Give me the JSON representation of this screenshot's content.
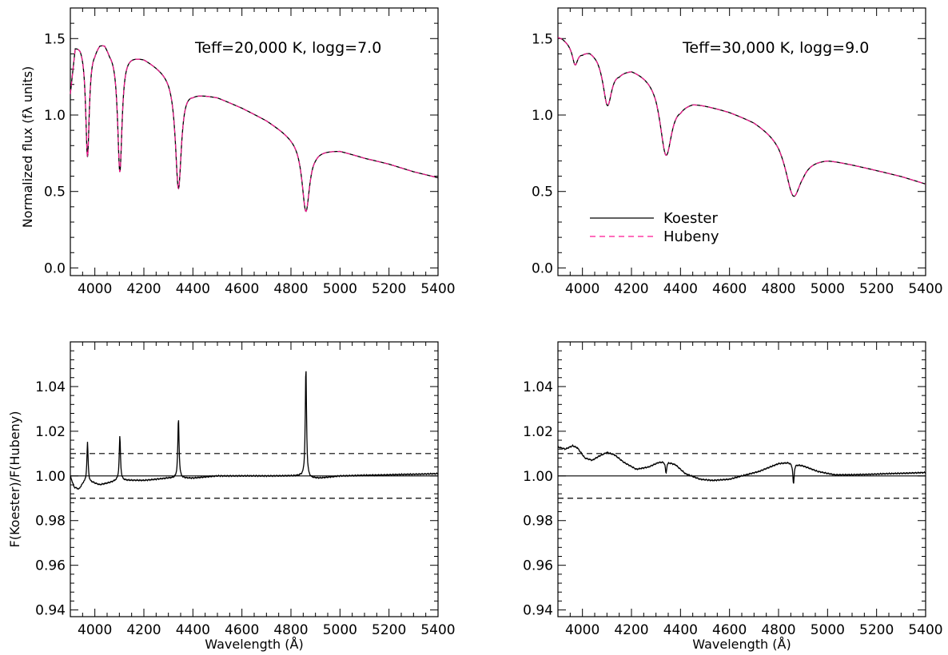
{
  "chart_data": [
    {
      "type": "line",
      "panel": "top-left",
      "annotation": "Teff=20,000 K, logg=7.0",
      "xlabel": "",
      "ylabel": "Normalized flux (fλ units)",
      "xlim": [
        3900,
        5400
      ],
      "ylim": [
        -0.05,
        1.7
      ],
      "xticks": [
        4000,
        4200,
        4400,
        4600,
        4800,
        5000,
        5200,
        5400
      ],
      "xtick_labels": [
        "4000",
        "4200",
        "4400",
        "4600",
        "4800",
        "5000",
        "5200",
        "5400"
      ],
      "yticks": [
        0.0,
        0.5,
        1.0,
        1.5
      ],
      "ytick_labels": [
        "0.0",
        "0.5",
        "1.0",
        "1.5"
      ],
      "continuum": [
        [
          3900,
          1.15
        ],
        [
          3920,
          1.46
        ],
        [
          3940,
          1.48
        ],
        [
          4000,
          1.45
        ],
        [
          4020,
          1.49
        ],
        [
          4040,
          1.49
        ],
        [
          4060,
          1.44
        ],
        [
          4200,
          1.38
        ],
        [
          4300,
          1.28
        ],
        [
          4400,
          1.155
        ],
        [
          4500,
          1.12
        ],
        [
          4600,
          1.05
        ],
        [
          4700,
          0.97
        ],
        [
          4800,
          0.87
        ],
        [
          4900,
          0.78
        ],
        [
          5000,
          0.77
        ],
        [
          5100,
          0.72
        ],
        [
          5200,
          0.68
        ],
        [
          5300,
          0.63
        ],
        [
          5400,
          0.59
        ]
      ],
      "lines": [
        {
          "center": 3970,
          "depth_to": 0.73,
          "width": 9
        },
        {
          "center": 4102,
          "depth_to": 0.63,
          "width": 11
        },
        {
          "center": 4341,
          "depth_to": 0.52,
          "width": 15
        },
        {
          "center": 4861,
          "depth_to": 0.37,
          "width": 19
        }
      ],
      "series": [
        {
          "name": "Koester",
          "style": "solid",
          "color": "#000000"
        },
        {
          "name": "Hubeny",
          "style": "dashed",
          "color": "#ff1493"
        }
      ],
      "grid": false
    },
    {
      "type": "line",
      "panel": "top-right",
      "annotation": "Teff=30,000 K, logg=9.0",
      "xlabel": "",
      "ylabel": "",
      "xlim": [
        3900,
        5400
      ],
      "ylim": [
        -0.05,
        1.7
      ],
      "xticks": [
        4000,
        4200,
        4400,
        4600,
        4800,
        5000,
        5200,
        5400
      ],
      "xtick_labels": [
        "4000",
        "4200",
        "4400",
        "4600",
        "4800",
        "5000",
        "5200",
        "5400"
      ],
      "yticks": [
        0.0,
        0.5,
        1.0,
        1.5
      ],
      "ytick_labels": [
        "0.0",
        "0.5",
        "1.0",
        "1.5"
      ],
      "continuum": [
        [
          3900,
          1.52
        ],
        [
          3920,
          1.51
        ],
        [
          3950,
          1.48
        ],
        [
          4000,
          1.43
        ],
        [
          4030,
          1.44
        ],
        [
          4060,
          1.42
        ],
        [
          4150,
          1.31
        ],
        [
          4200,
          1.32
        ],
        [
          4300,
          1.26
        ],
        [
          4400,
          1.1
        ],
        [
          4450,
          1.1
        ],
        [
          4600,
          1.03
        ],
        [
          4700,
          0.97
        ],
        [
          4800,
          0.88
        ],
        [
          4900,
          0.73
        ],
        [
          5000,
          0.72
        ],
        [
          5100,
          0.68
        ],
        [
          5200,
          0.64
        ],
        [
          5300,
          0.6
        ],
        [
          5400,
          0.55
        ]
      ],
      "lines": [
        {
          "center": 3970,
          "depth_to": 1.34,
          "width": 14
        },
        {
          "center": 4102,
          "depth_to": 1.07,
          "width": 22
        },
        {
          "center": 4341,
          "depth_to": 0.74,
          "width": 30
        },
        {
          "center": 4861,
          "depth_to": 0.47,
          "width": 38
        }
      ],
      "series": [
        {
          "name": "Koester",
          "style": "solid",
          "color": "#000000"
        },
        {
          "name": "Hubeny",
          "style": "dashed",
          "color": "#ff1493"
        }
      ],
      "legend": {
        "placement": "lower-left",
        "entries": [
          "Koester",
          "Hubeny"
        ]
      },
      "grid": false
    },
    {
      "type": "line",
      "panel": "bottom-left",
      "xlabel": "Wavelength (Å)",
      "ylabel": "F(Koester)/F(Hubeny)",
      "xlim": [
        3900,
        5400
      ],
      "ylim": [
        0.937,
        1.06
      ],
      "xticks": [
        4000,
        4200,
        4400,
        4600,
        4800,
        5000,
        5200,
        5400
      ],
      "xtick_labels": [
        "4000",
        "4200",
        "4400",
        "4600",
        "4800",
        "5000",
        "5200",
        "5400"
      ],
      "yticks": [
        0.94,
        0.96,
        0.98,
        1.0,
        1.02,
        1.04
      ],
      "ytick_labels": [
        "0.94",
        "0.96",
        "0.98",
        "1.00",
        "1.02",
        "1.04"
      ],
      "reference_lines": [
        {
          "y": 1.0,
          "style": "solid"
        },
        {
          "y": 1.01,
          "style": "dashed"
        },
        {
          "y": 0.99,
          "style": "dashed"
        }
      ],
      "baseline": [
        [
          3900,
          1.0
        ],
        [
          3915,
          0.995
        ],
        [
          3935,
          0.994
        ],
        [
          3955,
          0.997
        ],
        [
          3990,
          0.997
        ],
        [
          4020,
          0.996
        ],
        [
          4060,
          0.997
        ],
        [
          4090,
          0.998
        ],
        [
          4120,
          0.998
        ],
        [
          4200,
          0.998
        ],
        [
          4300,
          0.999
        ],
        [
          4330,
          0.999
        ],
        [
          4360,
          0.999
        ],
        [
          4400,
          0.999
        ],
        [
          4500,
          1.0
        ],
        [
          4700,
          1.0
        ],
        [
          4840,
          1.0
        ],
        [
          4880,
          0.999
        ],
        [
          4920,
          0.999
        ],
        [
          5000,
          1.0
        ],
        [
          5400,
          1.001
        ]
      ],
      "spikes": [
        {
          "center": 3970,
          "peak": 1.015
        },
        {
          "center": 4102,
          "peak": 1.018
        },
        {
          "center": 4341,
          "peak": 1.026
        },
        {
          "center": 4861,
          "peak": 1.049
        }
      ],
      "grid": false
    },
    {
      "type": "line",
      "panel": "bottom-right",
      "xlabel": "Wavelength (Å)",
      "ylabel": "",
      "xlim": [
        3900,
        5400
      ],
      "ylim": [
        0.937,
        1.06
      ],
      "xticks": [
        4000,
        4200,
        4400,
        4600,
        4800,
        5000,
        5200,
        5400
      ],
      "xtick_labels": [
        "4000",
        "4200",
        "4400",
        "4600",
        "4800",
        "5000",
        "5200",
        "5400"
      ],
      "yticks": [
        0.94,
        0.96,
        0.98,
        1.0,
        1.02,
        1.04
      ],
      "ytick_labels": [
        "0.94",
        "0.96",
        "0.98",
        "1.00",
        "1.02",
        "1.04"
      ],
      "reference_lines": [
        {
          "y": 1.0,
          "style": "solid"
        },
        {
          "y": 1.01,
          "style": "dashed"
        },
        {
          "y": 0.99,
          "style": "dashed"
        }
      ],
      "baseline": [
        [
          3900,
          1.013
        ],
        [
          3930,
          1.012
        ],
        [
          3960,
          1.0135
        ],
        [
          3980,
          1.0125
        ],
        [
          4010,
          1.008
        ],
        [
          4040,
          1.007
        ],
        [
          4070,
          1.009
        ],
        [
          4100,
          1.0105
        ],
        [
          4130,
          1.0095
        ],
        [
          4170,
          1.006
        ],
        [
          4220,
          1.003
        ],
        [
          4270,
          1.004
        ],
        [
          4310,
          1.006
        ],
        [
          4341,
          1.0065
        ],
        [
          4380,
          1.005
        ],
        [
          4420,
          1.001
        ],
        [
          4480,
          0.9985
        ],
        [
          4530,
          0.998
        ],
        [
          4600,
          0.9985
        ],
        [
          4650,
          1.0
        ],
        [
          4720,
          1.002
        ],
        [
          4800,
          1.0055
        ],
        [
          4840,
          1.006
        ],
        [
          4861,
          1.0055
        ],
        [
          4900,
          1.0045
        ],
        [
          4960,
          1.002
        ],
        [
          5030,
          1.0005
        ],
        [
          5100,
          1.0005
        ],
        [
          5250,
          1.001
        ],
        [
          5400,
          1.0015
        ]
      ],
      "spikes": [
        {
          "center": 4341,
          "peak": 1.001
        },
        {
          "center": 4861,
          "peak": 0.996
        }
      ],
      "grid": false
    }
  ]
}
